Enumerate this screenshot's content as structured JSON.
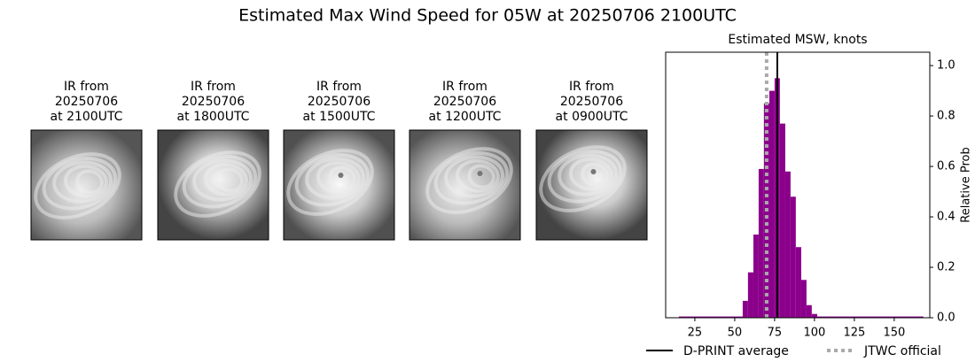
{
  "figure_title": "Estimated Max Wind Speed for 05W at 20250706 2100UTC",
  "panels": [
    {
      "lines": [
        "IR from",
        "20250706",
        "at 2100UTC"
      ]
    },
    {
      "lines": [
        "IR from",
        "20250706",
        "at 1800UTC"
      ]
    },
    {
      "lines": [
        "IR from",
        "20250706",
        "at 1500UTC"
      ]
    },
    {
      "lines": [
        "IR from",
        "20250706",
        "at 1200UTC"
      ]
    },
    {
      "lines": [
        "IR from",
        "20250706",
        "at 0900UTC"
      ]
    }
  ],
  "chart_data": {
    "type": "histogram",
    "title": "Estimated MSW, knots",
    "y_label": "Relative Prob",
    "color": "#8b008b",
    "bins": [
      15,
      55,
      58.3,
      61.7,
      65,
      68.3,
      71.7,
      75,
      78.3,
      81.7,
      85,
      88.3,
      91.7,
      95,
      98.3,
      101.7,
      168.3
    ],
    "counts": [
      0.005,
      0.067,
      0.18,
      0.33,
      0.59,
      0.85,
      0.9,
      0.95,
      0.77,
      0.58,
      0.48,
      0.28,
      0.15,
      0.05,
      0.015,
      0.005
    ],
    "xlim": [
      6.7,
      172.3
    ],
    "ylim": [
      0,
      1.053
    ],
    "xticks": [
      25,
      50,
      75,
      100,
      125,
      150
    ],
    "yticks": [
      {
        "value": 0,
        "label": "0.0"
      },
      {
        "value": 0.2,
        "label": "0.2"
      },
      {
        "value": 0.4,
        "label": "0.4"
      },
      {
        "value": 0.6,
        "label": "0.6"
      },
      {
        "value": 0.8,
        "label": "0.8"
      },
      {
        "value": 1,
        "label": "1.0"
      }
    ],
    "lines": [
      {
        "name": "D-PRINT average",
        "value": 76.7,
        "color": "#000000",
        "style": "solid"
      },
      {
        "name": "JTWC official",
        "value": 70,
        "color": "#aaaaaa",
        "style": "dotted"
      }
    ]
  }
}
